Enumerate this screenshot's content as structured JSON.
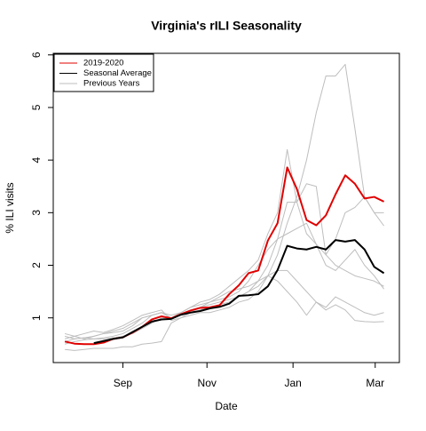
{
  "chart_data": {
    "type": "line",
    "title": "Virginia's rILI Seasonality",
    "xlabel": "Date",
    "ylabel": "% ILI visits",
    "x": [
      1,
      2,
      3,
      4,
      5,
      6,
      7,
      8,
      9,
      10,
      11,
      12,
      13,
      14,
      15,
      16,
      17,
      18,
      19,
      20,
      21,
      22,
      23,
      24,
      25,
      26,
      27,
      28,
      29,
      30,
      31,
      32,
      33,
      34
    ],
    "xlim": [
      -0.2,
      35.6
    ],
    "xticks": [
      {
        "value": 7,
        "label": "Sep"
      },
      {
        "value": 15.7,
        "label": "Nov"
      },
      {
        "value": 24.6,
        "label": "Jan"
      },
      {
        "value": 33.1,
        "label": "Mar"
      }
    ],
    "ylim": [
      0.15,
      6.03
    ],
    "yticks": [
      1,
      2,
      3,
      4,
      5,
      6
    ],
    "legend": "top-left",
    "previous_years": {
      "name": "Previous Years",
      "color": "#bebebe",
      "values": [
        [
          0.65,
          0.6,
          0.62,
          0.6,
          0.6,
          0.62,
          0.65,
          0.7,
          0.8,
          0.9,
          1.0,
          1.0,
          1.05,
          1.1,
          1.15,
          1.2,
          1.25,
          1.3,
          1.4,
          1.5,
          1.6,
          1.8,
          2.2,
          2.8,
          3.3,
          4.0,
          4.9,
          5.6,
          5.6,
          5.82,
          4.6,
          3.3,
          3.0,
          2.75
        ],
        [
          0.6,
          0.65,
          0.6,
          0.65,
          0.7,
          0.72,
          0.75,
          0.85,
          1.0,
          1.05,
          1.1,
          1.0,
          1.1,
          1.2,
          1.3,
          1.35,
          1.45,
          1.6,
          1.75,
          1.9,
          2.1,
          2.6,
          3.0,
          4.2,
          3.2,
          2.6,
          2.4,
          2.2,
          2.0,
          1.9,
          1.8,
          1.75,
          1.7,
          1.6
        ],
        [
          0.5,
          0.55,
          0.58,
          0.6,
          0.62,
          0.65,
          0.7,
          0.8,
          0.9,
          1.05,
          1.1,
          1.0,
          1.05,
          1.15,
          1.2,
          1.25,
          1.3,
          1.35,
          1.4,
          1.5,
          1.7,
          2.0,
          2.5,
          3.2,
          3.2,
          3.55,
          3.5,
          2.2,
          2.5,
          3.0,
          3.1,
          3.3,
          3.0,
          3.0
        ],
        [
          0.4,
          0.38,
          0.4,
          0.42,
          0.42,
          0.42,
          0.45,
          0.45,
          0.5,
          0.52,
          0.55,
          0.9,
          1.0,
          1.05,
          1.1,
          1.1,
          1.15,
          1.2,
          1.3,
          1.35,
          1.5,
          1.8,
          1.7,
          1.5,
          1.3,
          1.05,
          1.3,
          1.15,
          1.25,
          1.15,
          0.95,
          0.93,
          0.92,
          0.93
        ],
        [
          0.7,
          0.65,
          0.7,
          0.75,
          0.72,
          0.78,
          0.85,
          0.95,
          1.05,
          1.1,
          1.15,
          0.95,
          1.0,
          1.1,
          1.2,
          1.3,
          1.4,
          1.5,
          1.55,
          1.6,
          1.7,
          1.8,
          1.9,
          1.9,
          1.7,
          1.5,
          1.3,
          1.2,
          1.4,
          1.3,
          1.2,
          1.1,
          1.05,
          1.1
        ],
        [
          0.55,
          0.6,
          0.62,
          0.65,
          0.7,
          0.75,
          0.8,
          0.9,
          1.0,
          1.05,
          1.1,
          1.05,
          1.1,
          1.2,
          1.25,
          1.3,
          1.35,
          1.4,
          1.5,
          1.7,
          2.0,
          2.3,
          2.5,
          2.6,
          2.7,
          2.8,
          2.4,
          2.0,
          1.9,
          2.1,
          2.3,
          2.0,
          1.8,
          1.55
        ]
      ]
    },
    "series": [
      {
        "name": "2019-2020",
        "color": "#e00000",
        "values": [
          0.55,
          0.51,
          0.5,
          0.5,
          0.53,
          0.6,
          0.63,
          0.72,
          0.83,
          0.97,
          1.03,
          0.99,
          1.07,
          1.14,
          1.19,
          1.2,
          1.24,
          1.45,
          1.62,
          1.85,
          1.9,
          2.47,
          2.8,
          3.86,
          3.45,
          2.86,
          2.76,
          2.95,
          3.35,
          3.71,
          3.55,
          3.27,
          3.3,
          3.21
        ]
      },
      {
        "name": "Seasonal Average",
        "color": "#000000",
        "values": [
          null,
          null,
          null,
          0.52,
          0.56,
          0.6,
          0.63,
          0.73,
          0.83,
          0.93,
          0.97,
          0.98,
          1.06,
          1.1,
          1.13,
          1.18,
          1.21,
          1.27,
          1.42,
          1.43,
          1.45,
          1.6,
          1.91,
          2.37,
          2.32,
          2.3,
          2.35,
          2.3,
          2.48,
          2.45,
          2.48,
          2.3,
          1.97,
          1.85
        ]
      }
    ]
  }
}
